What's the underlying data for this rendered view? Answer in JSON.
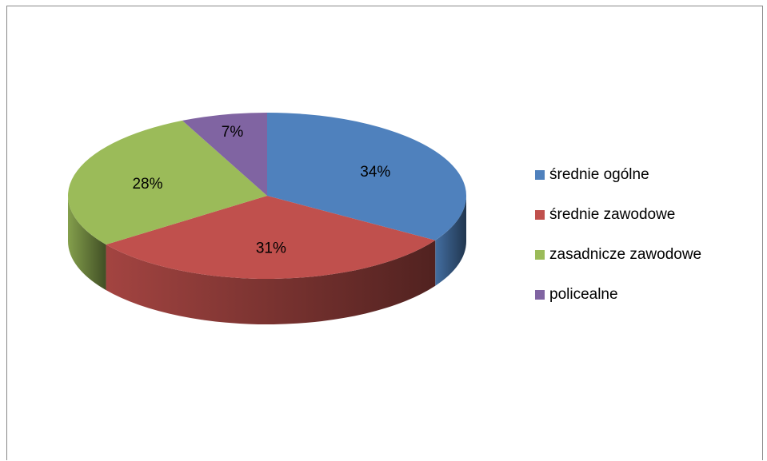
{
  "chart_data": {
    "type": "pie",
    "title": "",
    "categories": [
      "średnie ogólne",
      "średnie zawodowe",
      "zasadnicze zawodowe",
      "policealne"
    ],
    "values": [
      34,
      31,
      28,
      7
    ],
    "labels": [
      "34%",
      "31%",
      "28%",
      "7%"
    ],
    "colors": [
      "#4F81BD",
      "#C0504D",
      "#9BBB59",
      "#8064A2"
    ],
    "legend_position": "right",
    "style": "3d"
  }
}
